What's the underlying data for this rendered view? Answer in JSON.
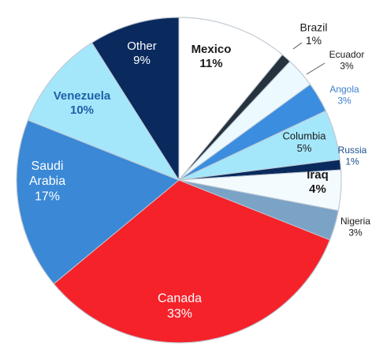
{
  "chart_data": {
    "type": "pie",
    "title": "",
    "slices": [
      {
        "name": "Mexico",
        "value": 11,
        "pct_label": "11%",
        "color": "#ffffff",
        "label_color": "#1a1a1a"
      },
      {
        "name": "Brazil",
        "value": 1,
        "pct_label": "1%",
        "color": "#27323f",
        "label_color": "#1a1a1a"
      },
      {
        "name": "Ecuador",
        "value": 3,
        "pct_label": "3%",
        "color": "#ecfaff",
        "label_color": "#1a1a1a"
      },
      {
        "name": "Angola",
        "value": 3,
        "pct_label": "3%",
        "color": "#3b8de0",
        "label_color": "#3f7fcc"
      },
      {
        "name": "Columbia",
        "value": 5,
        "pct_label": "5%",
        "color": "#a4e7fb",
        "label_color": "#1a1a1a"
      },
      {
        "name": "Russia",
        "value": 1,
        "pct_label": "1%",
        "color": "#0a2a5e",
        "label_color": "#1b4f8f"
      },
      {
        "name": "Iraq",
        "value": 4,
        "pct_label": "4%",
        "color": "#f4fbff",
        "label_color": "#1a1a1a"
      },
      {
        "name": "Nigeria",
        "value": 3,
        "pct_label": "3%",
        "color": "#7aa3c6",
        "label_color": "#1a1a1a"
      },
      {
        "name": "Canada",
        "value": 33,
        "pct_label": "33%",
        "color": "#f5222a",
        "label_color": "#ffffff"
      },
      {
        "name": "Saudi Arabia",
        "value": 17,
        "pct_label": "17%",
        "color": "#3a88d6",
        "label_color": "#ffffff"
      },
      {
        "name": "Venezuela",
        "value": 10,
        "pct_label": "10%",
        "color": "#a4e7fb",
        "label_color": "#1f5fa8"
      },
      {
        "name": "Other",
        "value": 9,
        "pct_label": "9%",
        "color": "#0a2a5e",
        "label_color": "#ffffff"
      }
    ]
  }
}
